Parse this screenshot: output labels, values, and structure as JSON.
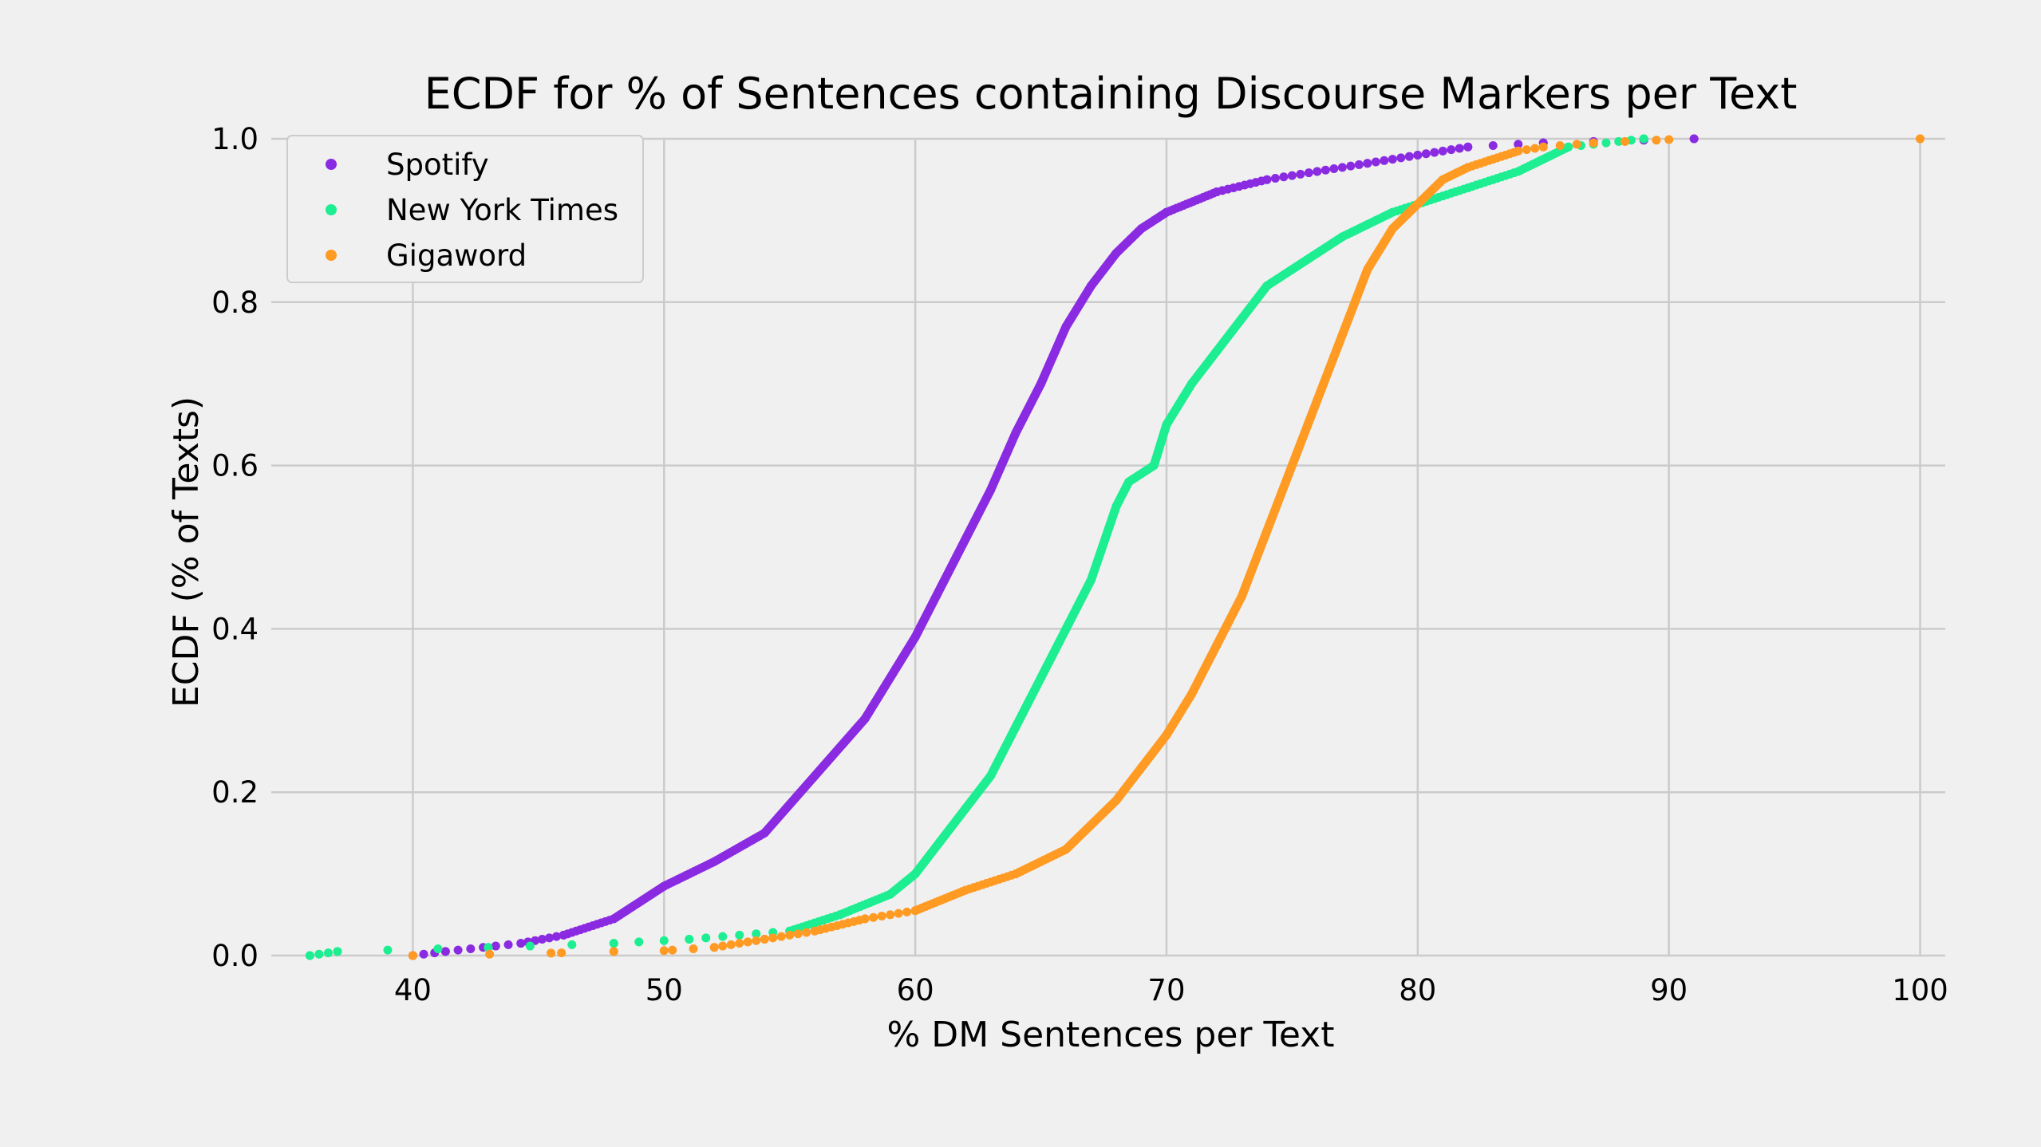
{
  "chart_data": {
    "type": "scatter",
    "title": "ECDF for % of Sentences containing Discourse Markers per Text",
    "xlabel": "% DM Sentences per Text",
    "ylabel": "ECDF (% of Texts)",
    "xlim": [
      35,
      101
    ],
    "ylim": [
      0,
      1
    ],
    "xticks": [
      "40",
      "50",
      "60",
      "70",
      "80",
      "90",
      "100"
    ],
    "yticks": [
      "0.0",
      "0.2",
      "0.4",
      "0.6",
      "0.8",
      "1.0"
    ],
    "grid": true,
    "legend_position": "top-left",
    "series": [
      {
        "name": "Spotify",
        "color": "#8a2be2",
        "curve": [
          [
            40,
            0
          ],
          [
            41.3,
            0.005
          ],
          [
            44.3,
            0.015
          ],
          [
            46,
            0.025
          ],
          [
            48,
            0.045
          ],
          [
            50,
            0.085
          ],
          [
            52,
            0.115
          ],
          [
            54,
            0.15
          ],
          [
            56,
            0.22
          ],
          [
            58,
            0.29
          ],
          [
            60,
            0.39
          ],
          [
            62,
            0.51
          ],
          [
            63,
            0.57
          ],
          [
            64,
            0.64
          ],
          [
            65,
            0.7
          ],
          [
            66,
            0.77
          ],
          [
            67,
            0.82
          ],
          [
            68,
            0.86
          ],
          [
            69,
            0.89
          ],
          [
            70,
            0.91
          ],
          [
            72,
            0.935
          ],
          [
            74,
            0.95
          ],
          [
            76,
            0.96
          ],
          [
            78,
            0.97
          ],
          [
            80,
            0.98
          ],
          [
            82,
            0.99
          ],
          [
            85,
            0.995
          ],
          [
            91,
            1.0
          ]
        ]
      },
      {
        "name": "New York Times",
        "color": "#1dee91",
        "curve": [
          [
            35.9,
            0
          ],
          [
            37,
            0.005
          ],
          [
            43,
            0.01
          ],
          [
            48,
            0.015
          ],
          [
            51,
            0.02
          ],
          [
            55,
            0.03
          ],
          [
            57,
            0.05
          ],
          [
            59,
            0.075
          ],
          [
            60,
            0.1
          ],
          [
            61,
            0.14
          ],
          [
            62,
            0.18
          ],
          [
            63,
            0.22
          ],
          [
            64,
            0.28
          ],
          [
            65,
            0.34
          ],
          [
            66,
            0.4
          ],
          [
            67,
            0.46
          ],
          [
            68,
            0.55
          ],
          [
            68.5,
            0.58
          ],
          [
            69.5,
            0.6
          ],
          [
            70,
            0.65
          ],
          [
            71,
            0.7
          ],
          [
            72,
            0.74
          ],
          [
            73,
            0.78
          ],
          [
            74,
            0.82
          ],
          [
            75,
            0.84
          ],
          [
            76,
            0.86
          ],
          [
            77,
            0.88
          ],
          [
            78,
            0.895
          ],
          [
            79,
            0.91
          ],
          [
            80,
            0.92
          ],
          [
            82,
            0.94
          ],
          [
            84,
            0.96
          ],
          [
            86,
            0.99
          ],
          [
            89,
            1.0
          ]
        ]
      },
      {
        "name": "Gigaword",
        "color": "#ff9a23",
        "curve": [
          [
            40,
            0
          ],
          [
            45.5,
            0.003
          ],
          [
            48,
            0.005
          ],
          [
            50,
            0.006
          ],
          [
            52,
            0.01
          ],
          [
            54,
            0.02
          ],
          [
            56,
            0.03
          ],
          [
            58,
            0.045
          ],
          [
            60,
            0.055
          ],
          [
            62,
            0.08
          ],
          [
            64,
            0.1
          ],
          [
            66,
            0.13
          ],
          [
            67,
            0.16
          ],
          [
            68,
            0.19
          ],
          [
            69,
            0.23
          ],
          [
            70,
            0.27
          ],
          [
            71,
            0.32
          ],
          [
            72,
            0.38
          ],
          [
            73,
            0.44
          ],
          [
            74,
            0.52
          ],
          [
            75,
            0.6
          ],
          [
            76,
            0.68
          ],
          [
            77,
            0.76
          ],
          [
            78,
            0.84
          ],
          [
            79,
            0.89
          ],
          [
            80,
            0.92
          ],
          [
            81,
            0.95
          ],
          [
            82,
            0.965
          ],
          [
            83,
            0.975
          ],
          [
            84,
            0.985
          ],
          [
            85,
            0.99
          ],
          [
            87,
            0.995
          ],
          [
            90,
            0.999
          ],
          [
            100,
            1.0
          ]
        ]
      }
    ]
  }
}
